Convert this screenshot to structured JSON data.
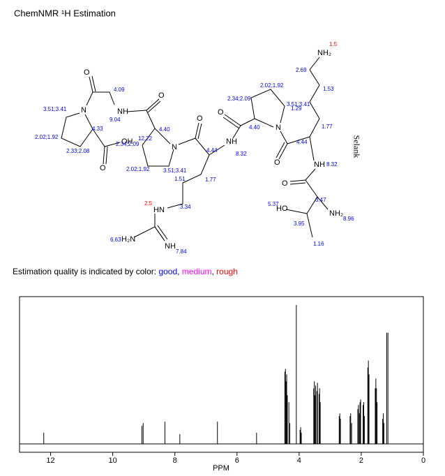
{
  "title": "ChemNMR ¹H Estimation",
  "molecule": {
    "name": "Selank",
    "atoms": [
      "NH₂",
      "N",
      "O",
      "NH",
      "O",
      "HO",
      "NH₂",
      "O",
      "NH",
      "O",
      "N",
      "O",
      "NH",
      "O",
      "N",
      "O",
      "OH",
      "HN",
      "H₂N",
      "NH"
    ],
    "shifts": [
      {
        "label": "1.5",
        "color": "#ff0000"
      },
      {
        "label": "2.69",
        "color": "#0000ff"
      },
      {
        "label": "1.53",
        "color": "#0000ff"
      },
      {
        "label": "2.02;1.92",
        "color": "#0000ff"
      },
      {
        "label": "2.34;2.09",
        "color": "#0000ff"
      },
      {
        "label": "3.51;3.41",
        "color": "#0000ff"
      },
      {
        "label": "1.29",
        "color": "#0000ff"
      },
      {
        "label": "1.77",
        "color": "#0000ff"
      },
      {
        "label": "4.40",
        "color": "#0000ff"
      },
      {
        "label": "4.44",
        "color": "#0000ff"
      },
      {
        "label": "8.32",
        "color": "#0000ff"
      },
      {
        "label": "3.47",
        "color": "#0000ff"
      },
      {
        "label": "5.37",
        "color": "#0000ff"
      },
      {
        "label": "8.96",
        "color": "#0000ff"
      },
      {
        "label": "3.95",
        "color": "#0000ff"
      },
      {
        "label": "1.16",
        "color": "#0000ff"
      },
      {
        "label": "4.09",
        "color": "#0000ff"
      },
      {
        "label": "3.51;3.41",
        "color": "#0000ff"
      },
      {
        "label": "9.04",
        "color": "#0000ff"
      },
      {
        "label": "4.33",
        "color": "#0000ff"
      },
      {
        "label": "2.02;1.92",
        "color": "#0000ff"
      },
      {
        "label": "12.22",
        "color": "#0000ff"
      },
      {
        "label": "4.40",
        "color": "#0000ff"
      },
      {
        "label": "2.34;2.09",
        "color": "#0000ff"
      },
      {
        "label": "2.33;2.08",
        "color": "#0000ff"
      },
      {
        "label": "2.02;1.92",
        "color": "#0000ff"
      },
      {
        "label": "3.51;3.41",
        "color": "#0000ff"
      },
      {
        "label": "4.44",
        "color": "#0000ff"
      },
      {
        "label": "8.32",
        "color": "#0000ff"
      },
      {
        "label": "1.51",
        "color": "#0000ff"
      },
      {
        "label": "1.77",
        "color": "#0000ff"
      },
      {
        "label": "2.5",
        "color": "#ff0000"
      },
      {
        "label": "3.34",
        "color": "#0000ff"
      },
      {
        "label": "6.63",
        "color": "#0000ff"
      },
      {
        "label": "7.84",
        "color": "#0000ff"
      }
    ]
  },
  "legend": [
    {
      "text": "Estimation quality is indicated by color: ",
      "color": "#000000"
    },
    {
      "text": "good",
      "color": "#0000ff"
    },
    {
      "text": ", ",
      "color": "#000000"
    },
    {
      "text": "medium",
      "color": "#ff00ff"
    },
    {
      "text": ", ",
      "color": "#000000"
    },
    {
      "text": "rough",
      "color": "#ff0000"
    }
  ],
  "chart_data": {
    "type": "spectrum",
    "xlabel": "PPM",
    "xlim": [
      13,
      0
    ],
    "xticks": [
      12,
      10,
      8,
      6,
      4,
      2,
      0
    ],
    "color": "#000000",
    "x": [
      12.22,
      9.06,
      9.02,
      8.32,
      7.84,
      6.63,
      5.37,
      4.46,
      4.44,
      4.42,
      4.4,
      4.38,
      4.33,
      4.3,
      4.09,
      3.97,
      3.95,
      3.93,
      3.53,
      3.51,
      3.49,
      3.47,
      3.43,
      3.41,
      3.36,
      3.34,
      3.32,
      2.71,
      2.69,
      2.67,
      2.36,
      2.34,
      2.31,
      2.11,
      2.09,
      2.06,
      2.04,
      2.02,
      1.94,
      1.92,
      1.9,
      1.79,
      1.77,
      1.75,
      1.55,
      1.53,
      1.51,
      1.49,
      1.31,
      1.29,
      1.27,
      1.18,
      1.14
    ],
    "values": [
      0.08,
      0.13,
      0.15,
      0.16,
      0.07,
      0.16,
      0.08,
      0.52,
      0.54,
      0.45,
      0.5,
      0.35,
      0.3,
      0.15,
      1.0,
      0.1,
      0.12,
      0.08,
      0.4,
      0.45,
      0.35,
      0.42,
      0.38,
      0.44,
      0.36,
      0.4,
      0.3,
      0.2,
      0.22,
      0.18,
      0.2,
      0.22,
      0.15,
      0.25,
      0.28,
      0.22,
      0.3,
      0.32,
      0.28,
      0.3,
      0.2,
      0.55,
      0.6,
      0.5,
      0.4,
      0.47,
      0.4,
      0.3,
      0.18,
      0.22,
      0.15,
      0.8,
      0.8
    ]
  }
}
